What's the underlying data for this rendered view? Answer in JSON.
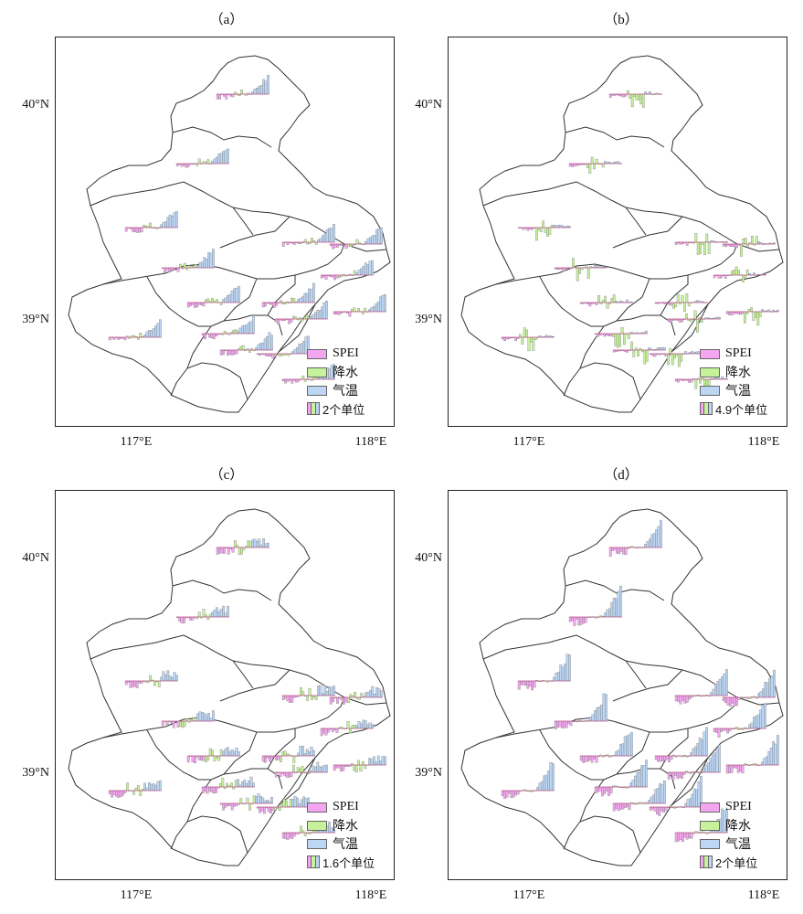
{
  "colors": {
    "spei": "#f3a6ef",
    "precip": "#c6f29a",
    "temp": "#bcd6f4",
    "outline": "#333333"
  },
  "axes": {
    "y_ticks": [
      "40°N",
      "39°N"
    ],
    "x_ticks": [
      "117°E",
      "118°E"
    ]
  },
  "legend": {
    "items": [
      "SPEI",
      "降水",
      "气温"
    ]
  },
  "panels": [
    {
      "label": "（a）",
      "scale": "2个单位",
      "pattern": "a"
    },
    {
      "label": "（b）",
      "scale": "4.9个单位",
      "pattern": "b"
    },
    {
      "label": "（c）",
      "scale": "1.6个单位",
      "pattern": "c"
    },
    {
      "label": "（d）",
      "scale": "2个单位",
      "pattern": "d"
    }
  ]
}
